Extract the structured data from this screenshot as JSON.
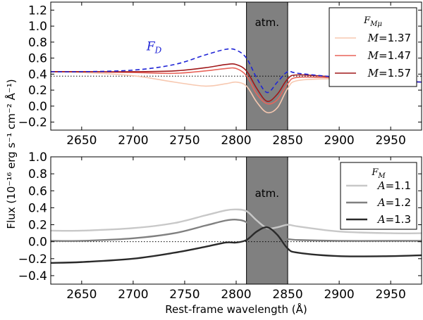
{
  "figure": {
    "xlabel": "Rest-frame wavelength (Å)",
    "ylabel": "Flux (10⁻¹⁶ erg s⁻¹ cm⁻² Å⁻¹)"
  },
  "colors": {
    "band": "#808080",
    "fd": "#1f24d6",
    "m137": "#f7c8b0",
    "m147": "#e8645a",
    "m157": "#a0181a",
    "a11": "#c8c8c8",
    "a12": "#808080",
    "a13": "#2a2a2a",
    "baseline": "#000000"
  },
  "chart_data": [
    {
      "type": "line",
      "xlim": [
        2620,
        2980
      ],
      "ylim": [
        -0.3,
        1.3
      ],
      "xticks": [
        2650,
        2700,
        2750,
        2800,
        2850,
        2900,
        2950
      ],
      "yticks": [
        -0.2,
        0.0,
        0.2,
        0.4,
        0.6,
        0.8,
        1.0,
        1.2
      ],
      "ytick_labels": [
        "−0.2",
        "0.0",
        "0.2",
        "0.4",
        "0.6",
        "0.8",
        "1.0",
        "1.2"
      ],
      "grid": false,
      "band": {
        "x": [
          2810,
          2850
        ],
        "label": "atm."
      },
      "baseline": 0.375,
      "annotation": {
        "text": "F",
        "subscript": "D",
        "x": 2713,
        "y": 0.7
      },
      "legend": {
        "title": "F",
        "title_sub": "Mμ",
        "position": "top-right",
        "items": [
          "M=1.37",
          "M=1.47",
          "M=1.57"
        ]
      },
      "series": [
        {
          "name": "M=1.37",
          "color_key": "m137",
          "x": [
            2620,
            2650,
            2700,
            2740,
            2770,
            2790,
            2800,
            2810,
            2820,
            2830,
            2840,
            2850,
            2860,
            2900,
            2950,
            2980
          ],
          "y": [
            0.43,
            0.42,
            0.38,
            0.3,
            0.25,
            0.28,
            0.3,
            0.25,
            0.05,
            -0.08,
            -0.02,
            0.22,
            0.32,
            0.34,
            0.31,
            0.3
          ]
        },
        {
          "name": "M=1.47",
          "color_key": "m147",
          "x": [
            2620,
            2650,
            2700,
            2740,
            2770,
            2790,
            2800,
            2810,
            2820,
            2830,
            2840,
            2850,
            2860,
            2900,
            2950,
            2980
          ],
          "y": [
            0.43,
            0.43,
            0.42,
            0.41,
            0.44,
            0.47,
            0.47,
            0.38,
            0.15,
            0.03,
            0.08,
            0.28,
            0.36,
            0.35,
            0.32,
            0.3
          ]
        },
        {
          "name": "M=1.57",
          "color_key": "m157",
          "x": [
            2620,
            2650,
            2700,
            2740,
            2770,
            2790,
            2800,
            2810,
            2820,
            2830,
            2840,
            2850,
            2860,
            2900,
            2950,
            2980
          ],
          "y": [
            0.43,
            0.43,
            0.43,
            0.44,
            0.48,
            0.52,
            0.52,
            0.44,
            0.22,
            0.06,
            0.15,
            0.34,
            0.39,
            0.36,
            0.32,
            0.3
          ]
        },
        {
          "name": "",
          "color_key": "fd",
          "dashed": true,
          "x": [
            2620,
            2650,
            2700,
            2740,
            2770,
            2790,
            2800,
            2810,
            2820,
            2830,
            2840,
            2850,
            2860,
            2900,
            2950,
            2980
          ],
          "y": [
            0.43,
            0.43,
            0.45,
            0.52,
            0.64,
            0.71,
            0.7,
            0.6,
            0.35,
            0.17,
            0.3,
            0.43,
            0.41,
            0.36,
            0.32,
            0.3
          ]
        }
      ]
    },
    {
      "type": "line",
      "xlim": [
        2620,
        2980
      ],
      "ylim": [
        -0.5,
        1.0
      ],
      "xticks": [
        2650,
        2700,
        2750,
        2800,
        2850,
        2900,
        2950
      ],
      "yticks": [
        -0.4,
        -0.2,
        0.0,
        0.2,
        0.4,
        0.6,
        0.8,
        1.0
      ],
      "ytick_labels": [
        "−0.4",
        "−0.2",
        "0.0",
        "0.2",
        "0.4",
        "0.6",
        "0.8",
        "1.0"
      ],
      "grid": false,
      "band": {
        "x": [
          2810,
          2850
        ],
        "label": "atm."
      },
      "baseline": 0.0,
      "legend": {
        "title": "F",
        "title_sub": "M",
        "position": "top-right",
        "items": [
          "A=1.1",
          "A=1.2",
          "A=1.3"
        ]
      },
      "series": [
        {
          "name": "A=1.1",
          "color_key": "a11",
          "x": [
            2620,
            2650,
            2700,
            2740,
            2770,
            2790,
            2800,
            2810,
            2820,
            2830,
            2840,
            2850,
            2860,
            2900,
            2950,
            2980
          ],
          "y": [
            0.13,
            0.13,
            0.16,
            0.22,
            0.31,
            0.37,
            0.38,
            0.36,
            0.25,
            0.16,
            0.17,
            0.2,
            0.18,
            0.12,
            0.1,
            0.1
          ]
        },
        {
          "name": "A=1.2",
          "color_key": "a12",
          "x": [
            2620,
            2650,
            2700,
            2740,
            2770,
            2790,
            2800,
            2810,
            2820,
            2830,
            2840,
            2850,
            2860,
            2900,
            2950,
            2980
          ],
          "y": [
            0.01,
            0.01,
            0.04,
            0.1,
            0.19,
            0.25,
            0.26,
            0.23,
            0.12,
            0.02,
            0.02,
            0.03,
            0.02,
            0.01,
            0.01,
            0.01
          ]
        },
        {
          "name": "A=1.3",
          "color_key": "a13",
          "x": [
            2620,
            2650,
            2700,
            2740,
            2770,
            2790,
            2800,
            2810,
            2820,
            2830,
            2840,
            2850,
            2860,
            2900,
            2950,
            2980
          ],
          "y": [
            -0.25,
            -0.24,
            -0.2,
            -0.13,
            -0.06,
            -0.01,
            -0.01,
            0.02,
            0.12,
            0.17,
            0.08,
            -0.08,
            -0.13,
            -0.17,
            -0.17,
            -0.16
          ]
        }
      ]
    }
  ]
}
